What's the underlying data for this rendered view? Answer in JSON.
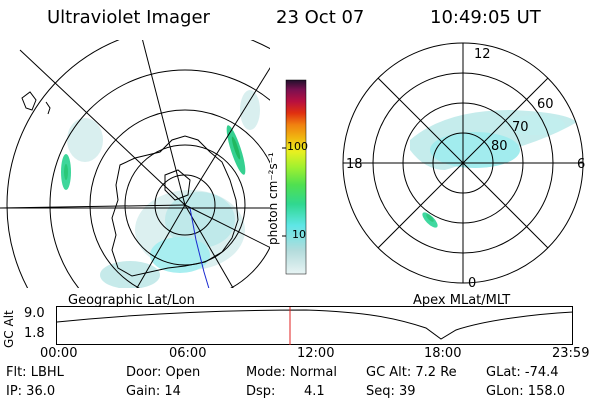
{
  "header": {
    "instrument": "Ultraviolet Imager",
    "date": "23 Oct 07",
    "time": "10:49:05 UT"
  },
  "geo_panel": {
    "label": "Geographic Lat/Lon"
  },
  "apex_panel": {
    "label": "Apex MLat/MLT",
    "mlt_labels": {
      "top": "12",
      "left": "18",
      "right": "6",
      "bottom": "0"
    },
    "lat_labels": [
      "60",
      "70",
      "80"
    ]
  },
  "colorbar": {
    "unit_label": "photon cm⁻²s⁻¹",
    "ticks": [
      "100",
      "10"
    ],
    "colors": [
      "#b4dcdc",
      "#5fe6e6",
      "#30d890",
      "#50e050",
      "#a0f030",
      "#e8f020",
      "#f0b810",
      "#f08010",
      "#e03010",
      "#b81040",
      "#7a1050",
      "#20102c"
    ]
  },
  "timeline": {
    "ylabel": "GC Alt",
    "y_ticks": [
      "9.0",
      "1.8"
    ],
    "x_ticks": [
      "00:00",
      "06:00",
      "12:00",
      "18:00",
      "23:59"
    ],
    "current_time": "10:49"
  },
  "info": {
    "row1": {
      "filter": "Flt: LBHL",
      "door": "Door: Open",
      "mode": "Mode: Normal",
      "gc_alt": "GC Alt: 7.2 Re",
      "glat": "GLat: -74.4"
    },
    "row2": {
      "ip": "IP: 36.0",
      "gain": "Gain: 14",
      "dsp_label": "Dsp:",
      "dsp_value": "4.1",
      "seq": "Seq: 39",
      "glon": "GLon: 158.0"
    }
  }
}
